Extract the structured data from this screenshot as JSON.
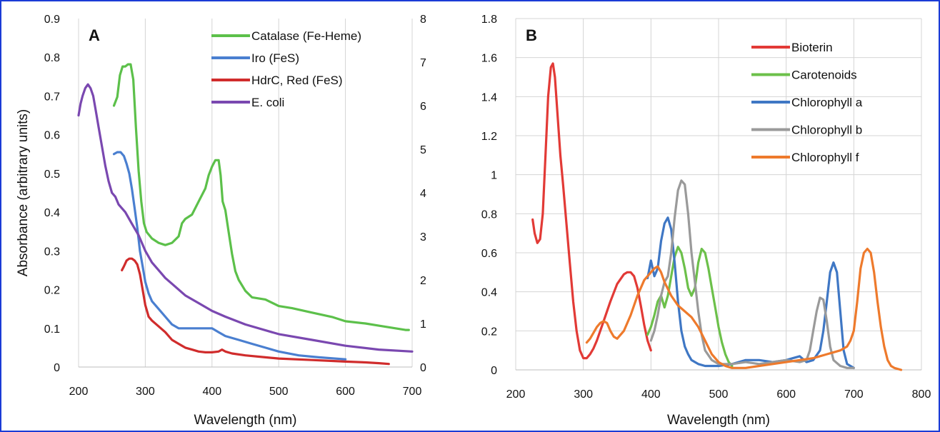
{
  "chart_data": [
    {
      "type": "line",
      "panel_label": "A",
      "xlabel": "Wavelength (nm)",
      "ylabel": "Absorbance (arbitrary units)",
      "xlim": [
        200,
        700
      ],
      "ylim": [
        0,
        0.9
      ],
      "y2lim": [
        0,
        8
      ],
      "xticks": [
        "200",
        "300",
        "400",
        "500",
        "600",
        "700"
      ],
      "yticks": [
        "0",
        "0.1",
        "0.2",
        "0.3",
        "0.4",
        "0.5",
        "0.6",
        "0.7",
        "0.8",
        "0.9"
      ],
      "y2ticks": [
        "0",
        "1",
        "2",
        "3",
        "4",
        "5",
        "6",
        "7",
        "8"
      ],
      "grid": "vertical",
      "legend_position": "top-right",
      "series": [
        {
          "name": "Catalase (Fe-Heme)",
          "color": "#5cc04a",
          "axis": "right",
          "x": [
            253,
            258,
            262,
            266,
            270,
            274,
            278,
            282,
            286,
            290,
            294,
            298,
            302,
            310,
            320,
            330,
            340,
            350,
            355,
            360,
            370,
            380,
            390,
            395,
            400,
            405,
            410,
            413,
            416,
            420,
            425,
            430,
            435,
            440,
            450,
            460,
            480,
            500,
            520,
            550,
            580,
            600,
            630,
            650,
            670,
            690,
            695
          ],
          "y": [
            6.0,
            6.2,
            6.7,
            6.9,
            6.9,
            6.95,
            6.95,
            6.6,
            5.5,
            4.5,
            3.8,
            3.3,
            3.1,
            2.95,
            2.85,
            2.8,
            2.85,
            3.0,
            3.3,
            3.4,
            3.5,
            3.8,
            4.1,
            4.4,
            4.6,
            4.75,
            4.75,
            4.4,
            3.8,
            3.6,
            3.1,
            2.6,
            2.2,
            2.0,
            1.75,
            1.6,
            1.55,
            1.4,
            1.35,
            1.25,
            1.15,
            1.05,
            1.0,
            0.95,
            0.9,
            0.85,
            0.85
          ]
        },
        {
          "name": "Iro (FeS)",
          "color": "#4a7fd0",
          "axis": "left",
          "x": [
            253,
            258,
            263,
            268,
            272,
            276,
            280,
            284,
            288,
            292,
            296,
            300,
            305,
            310,
            320,
            330,
            340,
            350,
            360,
            380,
            400,
            410,
            420,
            440,
            460,
            480,
            500,
            530,
            560,
            600
          ],
          "y": [
            0.55,
            0.555,
            0.555,
            0.545,
            0.525,
            0.5,
            0.46,
            0.41,
            0.36,
            0.3,
            0.26,
            0.22,
            0.19,
            0.17,
            0.15,
            0.13,
            0.11,
            0.1,
            0.1,
            0.1,
            0.1,
            0.09,
            0.08,
            0.07,
            0.06,
            0.05,
            0.04,
            0.03,
            0.025,
            0.02
          ]
        },
        {
          "name": "HdrC, Red (FeS)",
          "color": "#d02c2c",
          "axis": "left",
          "x": [
            265,
            268,
            272,
            276,
            280,
            284,
            288,
            292,
            296,
            300,
            305,
            310,
            320,
            330,
            340,
            350,
            360,
            370,
            380,
            390,
            400,
            410,
            415,
            420,
            430,
            450,
            480,
            500,
            550,
            600,
            630,
            650,
            665
          ],
          "y": [
            0.25,
            0.26,
            0.275,
            0.28,
            0.28,
            0.275,
            0.265,
            0.24,
            0.2,
            0.16,
            0.13,
            0.12,
            0.105,
            0.09,
            0.07,
            0.06,
            0.05,
            0.045,
            0.04,
            0.038,
            0.038,
            0.04,
            0.045,
            0.04,
            0.035,
            0.03,
            0.025,
            0.022,
            0.018,
            0.014,
            0.012,
            0.01,
            0.008
          ]
        },
        {
          "name": "E. coli",
          "color": "#7a48b0",
          "axis": "left",
          "x": [
            200,
            203,
            206,
            210,
            214,
            218,
            222,
            226,
            230,
            235,
            240,
            245,
            250,
            255,
            260,
            270,
            280,
            290,
            300,
            310,
            320,
            330,
            340,
            350,
            360,
            380,
            400,
            420,
            450,
            500,
            550,
            600,
            650,
            700
          ],
          "y": [
            0.65,
            0.68,
            0.7,
            0.72,
            0.73,
            0.72,
            0.7,
            0.66,
            0.62,
            0.57,
            0.52,
            0.48,
            0.45,
            0.44,
            0.42,
            0.4,
            0.37,
            0.34,
            0.3,
            0.27,
            0.25,
            0.23,
            0.215,
            0.2,
            0.185,
            0.165,
            0.145,
            0.13,
            0.11,
            0.085,
            0.07,
            0.055,
            0.045,
            0.04
          ]
        }
      ]
    },
    {
      "type": "line",
      "panel_label": "B",
      "xlabel": "Wavelength (nm)",
      "ylabel": "",
      "xlim": [
        200,
        800
      ],
      "ylim": [
        0,
        1.8
      ],
      "xticks": [
        "200",
        "300",
        "400",
        "500",
        "600",
        "700",
        "800"
      ],
      "yticks": [
        "0",
        "0.2",
        "0.4",
        "0.6",
        "0.8",
        "1",
        "1.2",
        "1.4",
        "1.6",
        "1.8"
      ],
      "grid": "both",
      "legend_position": "top-right",
      "series": [
        {
          "name": "Bioterin",
          "color": "#e23a36",
          "x": [
            225,
            228,
            232,
            236,
            240,
            244,
            248,
            252,
            255,
            258,
            262,
            266,
            270,
            275,
            280,
            285,
            290,
            295,
            300,
            305,
            310,
            315,
            320,
            330,
            340,
            350,
            360,
            365,
            370,
            375,
            380,
            385,
            390,
            395,
            400
          ],
          "y": [
            0.77,
            0.7,
            0.65,
            0.67,
            0.8,
            1.1,
            1.4,
            1.55,
            1.57,
            1.5,
            1.3,
            1.1,
            0.95,
            0.75,
            0.55,
            0.35,
            0.2,
            0.1,
            0.06,
            0.06,
            0.08,
            0.11,
            0.15,
            0.25,
            0.35,
            0.44,
            0.49,
            0.5,
            0.5,
            0.48,
            0.42,
            0.33,
            0.23,
            0.15,
            0.1
          ]
        },
        {
          "name": "Carotenoids",
          "color": "#6cc04a",
          "x": [
            395,
            400,
            405,
            410,
            415,
            420,
            425,
            430,
            435,
            440,
            445,
            450,
            455,
            460,
            465,
            470,
            475,
            480,
            485,
            490,
            495,
            500,
            505,
            510,
            515,
            520
          ],
          "y": [
            0.18,
            0.22,
            0.28,
            0.35,
            0.38,
            0.32,
            0.38,
            0.48,
            0.58,
            0.63,
            0.6,
            0.52,
            0.42,
            0.38,
            0.42,
            0.55,
            0.62,
            0.6,
            0.52,
            0.42,
            0.32,
            0.22,
            0.14,
            0.08,
            0.04,
            0.02
          ]
        },
        {
          "name": "Chlorophyll  a",
          "color": "#3f77c4",
          "x": [
            395,
            400,
            405,
            410,
            415,
            420,
            425,
            430,
            435,
            440,
            445,
            450,
            455,
            460,
            470,
            480,
            500,
            520,
            540,
            560,
            580,
            600,
            610,
            620,
            630,
            640,
            650,
            655,
            660,
            665,
            670,
            675,
            680,
            685,
            690,
            700
          ],
          "y": [
            0.47,
            0.56,
            0.48,
            0.52,
            0.66,
            0.75,
            0.78,
            0.72,
            0.55,
            0.35,
            0.2,
            0.12,
            0.08,
            0.05,
            0.03,
            0.02,
            0.02,
            0.03,
            0.05,
            0.05,
            0.04,
            0.05,
            0.06,
            0.07,
            0.04,
            0.05,
            0.1,
            0.2,
            0.35,
            0.5,
            0.55,
            0.5,
            0.3,
            0.1,
            0.03,
            0.01
          ]
        },
        {
          "name": "Chlorophyll b",
          "color": "#9a9a9a",
          "x": [
            400,
            405,
            410,
            415,
            420,
            425,
            430,
            435,
            440,
            445,
            450,
            455,
            460,
            465,
            470,
            475,
            480,
            490,
            500,
            520,
            540,
            560,
            580,
            600,
            620,
            630,
            635,
            640,
            645,
            650,
            655,
            660,
            665,
            670,
            680,
            690,
            700
          ],
          "y": [
            0.15,
            0.2,
            0.28,
            0.38,
            0.45,
            0.48,
            0.6,
            0.78,
            0.92,
            0.97,
            0.95,
            0.8,
            0.6,
            0.45,
            0.3,
            0.18,
            0.1,
            0.05,
            0.03,
            0.03,
            0.04,
            0.03,
            0.04,
            0.05,
            0.04,
            0.05,
            0.1,
            0.2,
            0.3,
            0.37,
            0.36,
            0.25,
            0.12,
            0.05,
            0.02,
            0.01,
            0.01
          ]
        },
        {
          "name": "Chlorophyll f",
          "color": "#ee7a2c",
          "x": [
            305,
            310,
            315,
            320,
            325,
            330,
            335,
            340,
            345,
            350,
            360,
            370,
            380,
            390,
            400,
            405,
            410,
            415,
            420,
            430,
            440,
            450,
            460,
            470,
            480,
            490,
            500,
            510,
            520,
            540,
            560,
            580,
            600,
            620,
            640,
            660,
            670,
            680,
            690,
            695,
            700,
            705,
            710,
            715,
            720,
            725,
            730,
            735,
            740,
            745,
            750,
            755,
            760,
            770
          ],
          "y": [
            0.14,
            0.16,
            0.19,
            0.22,
            0.24,
            0.25,
            0.24,
            0.2,
            0.17,
            0.16,
            0.2,
            0.28,
            0.38,
            0.46,
            0.5,
            0.52,
            0.53,
            0.5,
            0.45,
            0.38,
            0.33,
            0.3,
            0.27,
            0.22,
            0.15,
            0.08,
            0.04,
            0.02,
            0.01,
            0.01,
            0.02,
            0.03,
            0.04,
            0.05,
            0.06,
            0.08,
            0.09,
            0.1,
            0.12,
            0.15,
            0.2,
            0.35,
            0.52,
            0.6,
            0.62,
            0.6,
            0.5,
            0.35,
            0.22,
            0.12,
            0.05,
            0.02,
            0.01,
            0.0
          ]
        }
      ]
    }
  ]
}
